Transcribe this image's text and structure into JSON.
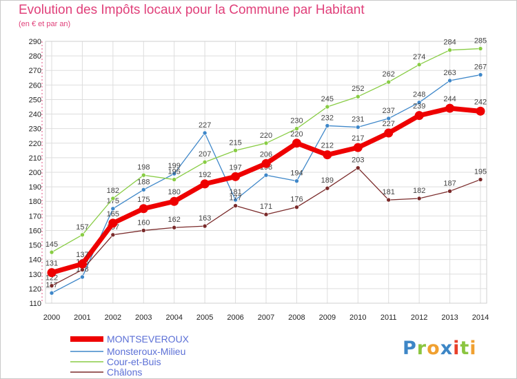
{
  "header": {
    "title": "Evolution des Impôts locaux pour la Commune par Habitant",
    "subtitle": "(en € et par an)"
  },
  "logo": {
    "text": "Proxiti"
  },
  "colors": {
    "title": "#e0407a",
    "legend_text": "#5b6fd6",
    "grid": "#dddddd",
    "axis_dash": "#e05080"
  },
  "chart_data": {
    "type": "line",
    "x": [
      "2000",
      "2001",
      "2002",
      "2003",
      "2004",
      "2005",
      "2006",
      "2007",
      "2008",
      "2009",
      "2010",
      "2011",
      "2012",
      "2013",
      "2014"
    ],
    "ylim": [
      110,
      290
    ],
    "yticks": [
      110,
      120,
      130,
      140,
      150,
      160,
      170,
      180,
      190,
      200,
      210,
      220,
      230,
      240,
      250,
      260,
      270,
      280,
      290
    ],
    "grid": true,
    "legend_position": "bottom-left",
    "series": [
      {
        "name": "MONTSEVEROUX",
        "color": "#ee0000",
        "values": [
          131,
          137,
          165,
          175,
          180,
          192,
          197,
          206,
          220,
          212,
          217,
          227,
          239,
          244,
          242
        ]
      },
      {
        "name": "Monsteroux-Milieu",
        "color": "#3e87c9",
        "values": [
          117,
          128,
          175,
          188,
          199,
          227,
          181,
          198,
          194,
          232,
          231,
          237,
          248,
          263,
          267
        ]
      },
      {
        "name": "Cour-et-Buis",
        "color": "#88cc44",
        "values": [
          145,
          157,
          182,
          198,
          195,
          207,
          215,
          220,
          230,
          245,
          252,
          262,
          274,
          284,
          285
        ]
      },
      {
        "name": "Châlons",
        "color": "#7a2a2a",
        "values": [
          122,
          133,
          157,
          160,
          162,
          163,
          177,
          171,
          176,
          189,
          203,
          181,
          182,
          187,
          195
        ]
      }
    ]
  }
}
